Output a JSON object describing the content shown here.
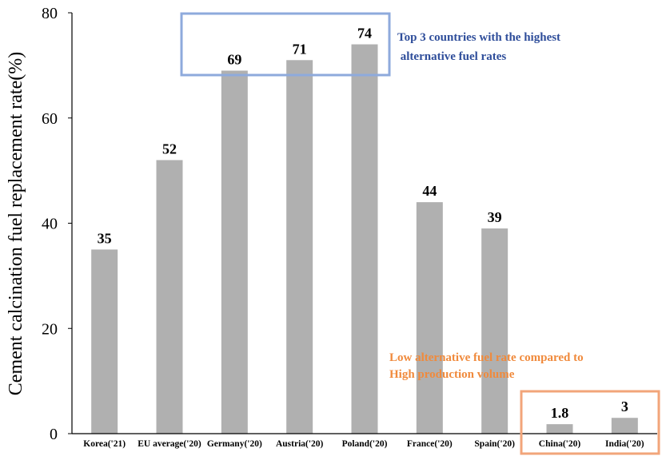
{
  "chart_data": {
    "type": "bar",
    "title": "",
    "xlabel": "",
    "ylabel": "Cement calcination fuel replacement rate(%)",
    "ylim": [
      0,
      80
    ],
    "yticks": [
      0,
      20,
      40,
      60,
      80
    ],
    "categories": [
      "Korea('21)",
      "EU average('20)",
      "Germany('20)",
      "Austria('20)",
      "Poland('20)",
      "France('20)",
      "Spain('20)",
      "China('20)",
      "India('20)"
    ],
    "values": [
      35,
      52,
      69,
      71,
      74,
      44,
      39,
      1.8,
      3
    ],
    "data_labels": [
      "35",
      "52",
      "69",
      "71",
      "74",
      "44",
      "39",
      "1.8",
      "3"
    ],
    "bar_color": "#b0b0b0",
    "annotations": [
      {
        "text_line1": "Top 3 countries with the highest",
        "text_line2": " alternative fuel rates",
        "color": "#2e4d9a",
        "box_color": "#8eaadc",
        "highlights": [
          "Germany('20)",
          "Austria('20)",
          "Poland('20)"
        ]
      },
      {
        "text_line1": "Low alternative fuel rate compared to",
        "text_line2": "High production volume",
        "color": "#f08a3c",
        "box_color": "#f2a57a",
        "highlights": [
          "China('20)",
          "India('20)"
        ]
      }
    ]
  }
}
